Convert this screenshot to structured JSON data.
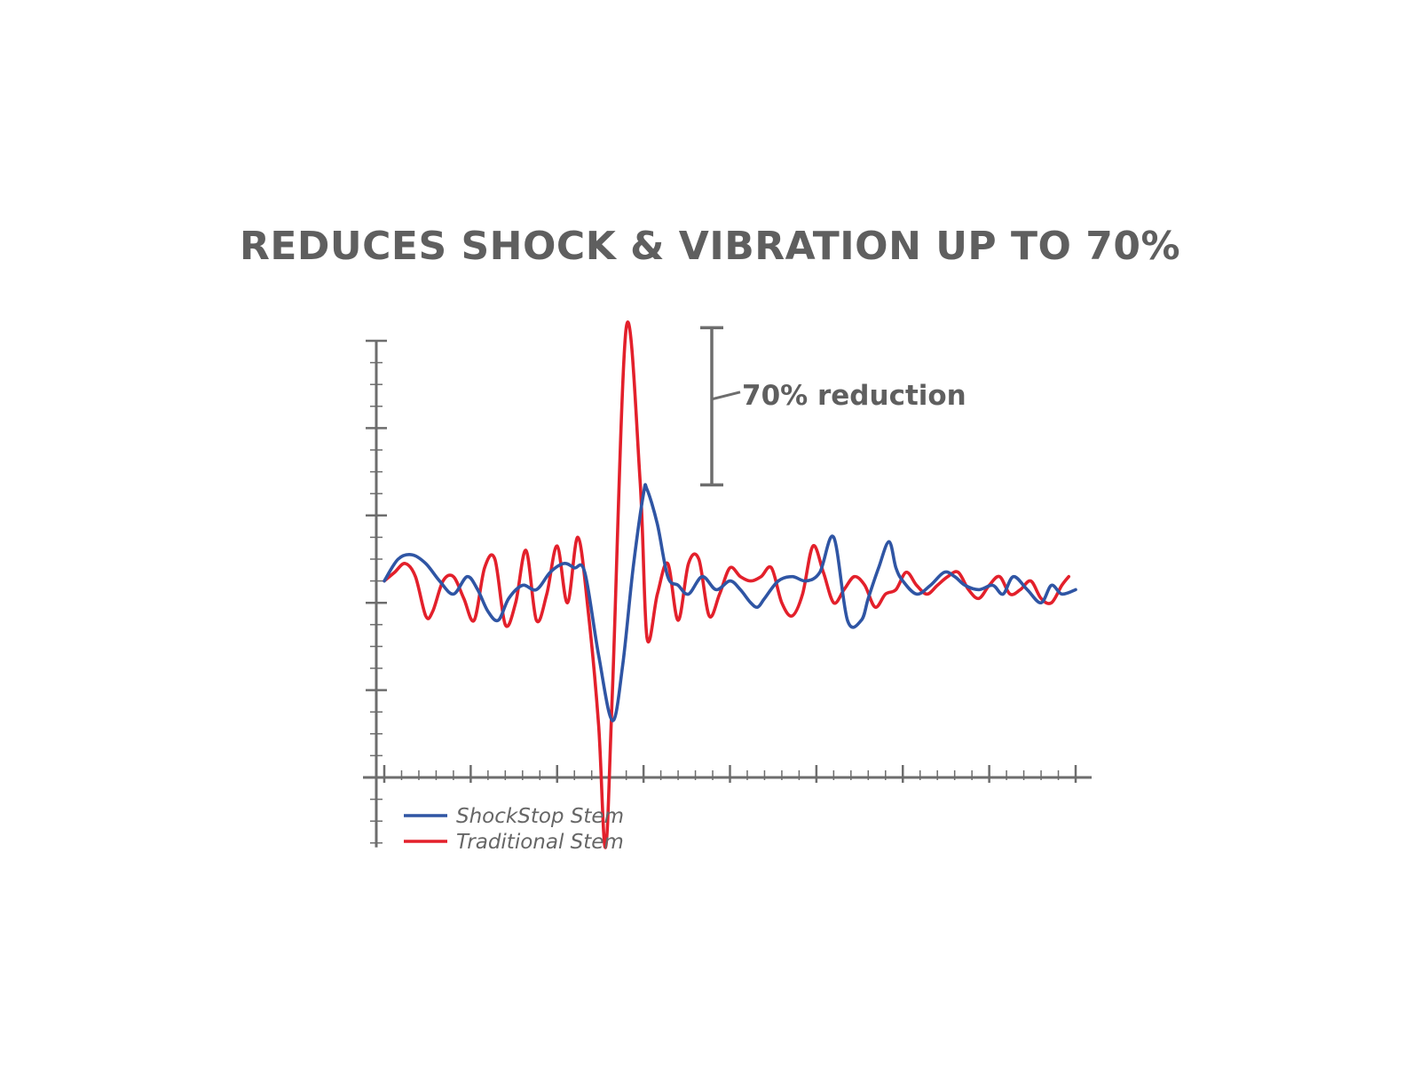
{
  "colors": {
    "shockstop": "#2f55a4",
    "traditional": "#e3202b",
    "axis": "#6d6d6d",
    "text": "#5f5f5f"
  },
  "chart_data": {
    "type": "line",
    "title": "REDUCES SHOCK & VIBRATION UP TO 70%",
    "xlabel": "",
    "ylabel": "",
    "xlim": [
      0,
      100
    ],
    "ylim": [
      -2,
      10
    ],
    "x_major_ticks": [
      0,
      12.5,
      25,
      37.5,
      50,
      62.5,
      75,
      87.5,
      100
    ],
    "y_major_ticks": [
      0,
      2,
      4,
      6,
      8,
      10
    ],
    "grid": false,
    "legend_position": "bottom-left",
    "annotation": {
      "label": "70% reduction",
      "from": 6.7,
      "to": 10.3
    },
    "series": [
      {
        "name": "ShockStop Stem",
        "color": "#2f55a4",
        "x": [
          0,
          2,
          4,
          6,
          8,
          10,
          12,
          13.5,
          15,
          16.5,
          18,
          20,
          22,
          24,
          26,
          27.5,
          29,
          31,
          33,
          34.5,
          36,
          37.5,
          38,
          39.5,
          41,
          42.5,
          44,
          46,
          48,
          50,
          51.5,
          53,
          54,
          55,
          57,
          59,
          61,
          63,
          65,
          67,
          69,
          70,
          71.5,
          73,
          74,
          75,
          77,
          79,
          81,
          82.5,
          84,
          86,
          88,
          89.5,
          91,
          93,
          95,
          96.5,
          98,
          100
        ],
        "y": [
          4.5,
          5.0,
          5.1,
          4.9,
          4.5,
          4.2,
          4.6,
          4.3,
          3.8,
          3.6,
          4.1,
          4.4,
          4.3,
          4.7,
          4.9,
          4.8,
          4.7,
          2.8,
          1.3,
          2.6,
          4.8,
          6.5,
          6.6,
          5.8,
          4.6,
          4.4,
          4.2,
          4.6,
          4.3,
          4.5,
          4.3,
          4.0,
          3.9,
          4.1,
          4.5,
          4.6,
          4.5,
          4.7,
          5.5,
          3.6,
          3.6,
          4.1,
          4.8,
          5.4,
          4.8,
          4.5,
          4.2,
          4.4,
          4.7,
          4.6,
          4.4,
          4.3,
          4.4,
          4.2,
          4.6,
          4.3,
          4.0,
          4.4,
          4.2,
          4.3
        ]
      },
      {
        "name": "Traditional Stem",
        "color": "#e3202b",
        "x": [
          0,
          1.5,
          3,
          4.5,
          6,
          7,
          8.5,
          10,
          11.5,
          13,
          14.5,
          16,
          17.5,
          19,
          20.5,
          22,
          23.5,
          25,
          26.5,
          28,
          29.5,
          31,
          32,
          33,
          35,
          37,
          38,
          39.5,
          41,
          42.5,
          44,
          45.5,
          47,
          48.5,
          50,
          51.5,
          53,
          54.5,
          56,
          57.5,
          59,
          60.5,
          62,
          63.5,
          65,
          66.5,
          68,
          69.5,
          71,
          72.5,
          74,
          75.5,
          77,
          78.5,
          80,
          81.5,
          83,
          84.5,
          86,
          87.5,
          89,
          90.5,
          92,
          93.5,
          95,
          96.5,
          98,
          99
        ],
        "y": [
          4.5,
          4.7,
          4.9,
          4.6,
          3.7,
          3.8,
          4.5,
          4.6,
          4.1,
          3.6,
          4.8,
          5.0,
          3.5,
          4.0,
          5.2,
          3.6,
          4.2,
          5.3,
          4.0,
          5.5,
          3.8,
          1.2,
          -1.6,
          2.0,
          10.3,
          6.8,
          3.2,
          4.2,
          4.9,
          3.6,
          4.9,
          5.0,
          3.7,
          4.2,
          4.8,
          4.6,
          4.5,
          4.6,
          4.8,
          4.0,
          3.7,
          4.2,
          5.3,
          4.7,
          4.0,
          4.3,
          4.6,
          4.4,
          3.9,
          4.2,
          4.3,
          4.7,
          4.4,
          4.2,
          4.4,
          4.6,
          4.7,
          4.3,
          4.1,
          4.4,
          4.6,
          4.2,
          4.3,
          4.5,
          4.1,
          4.0,
          4.4,
          4.6
        ]
      }
    ]
  }
}
